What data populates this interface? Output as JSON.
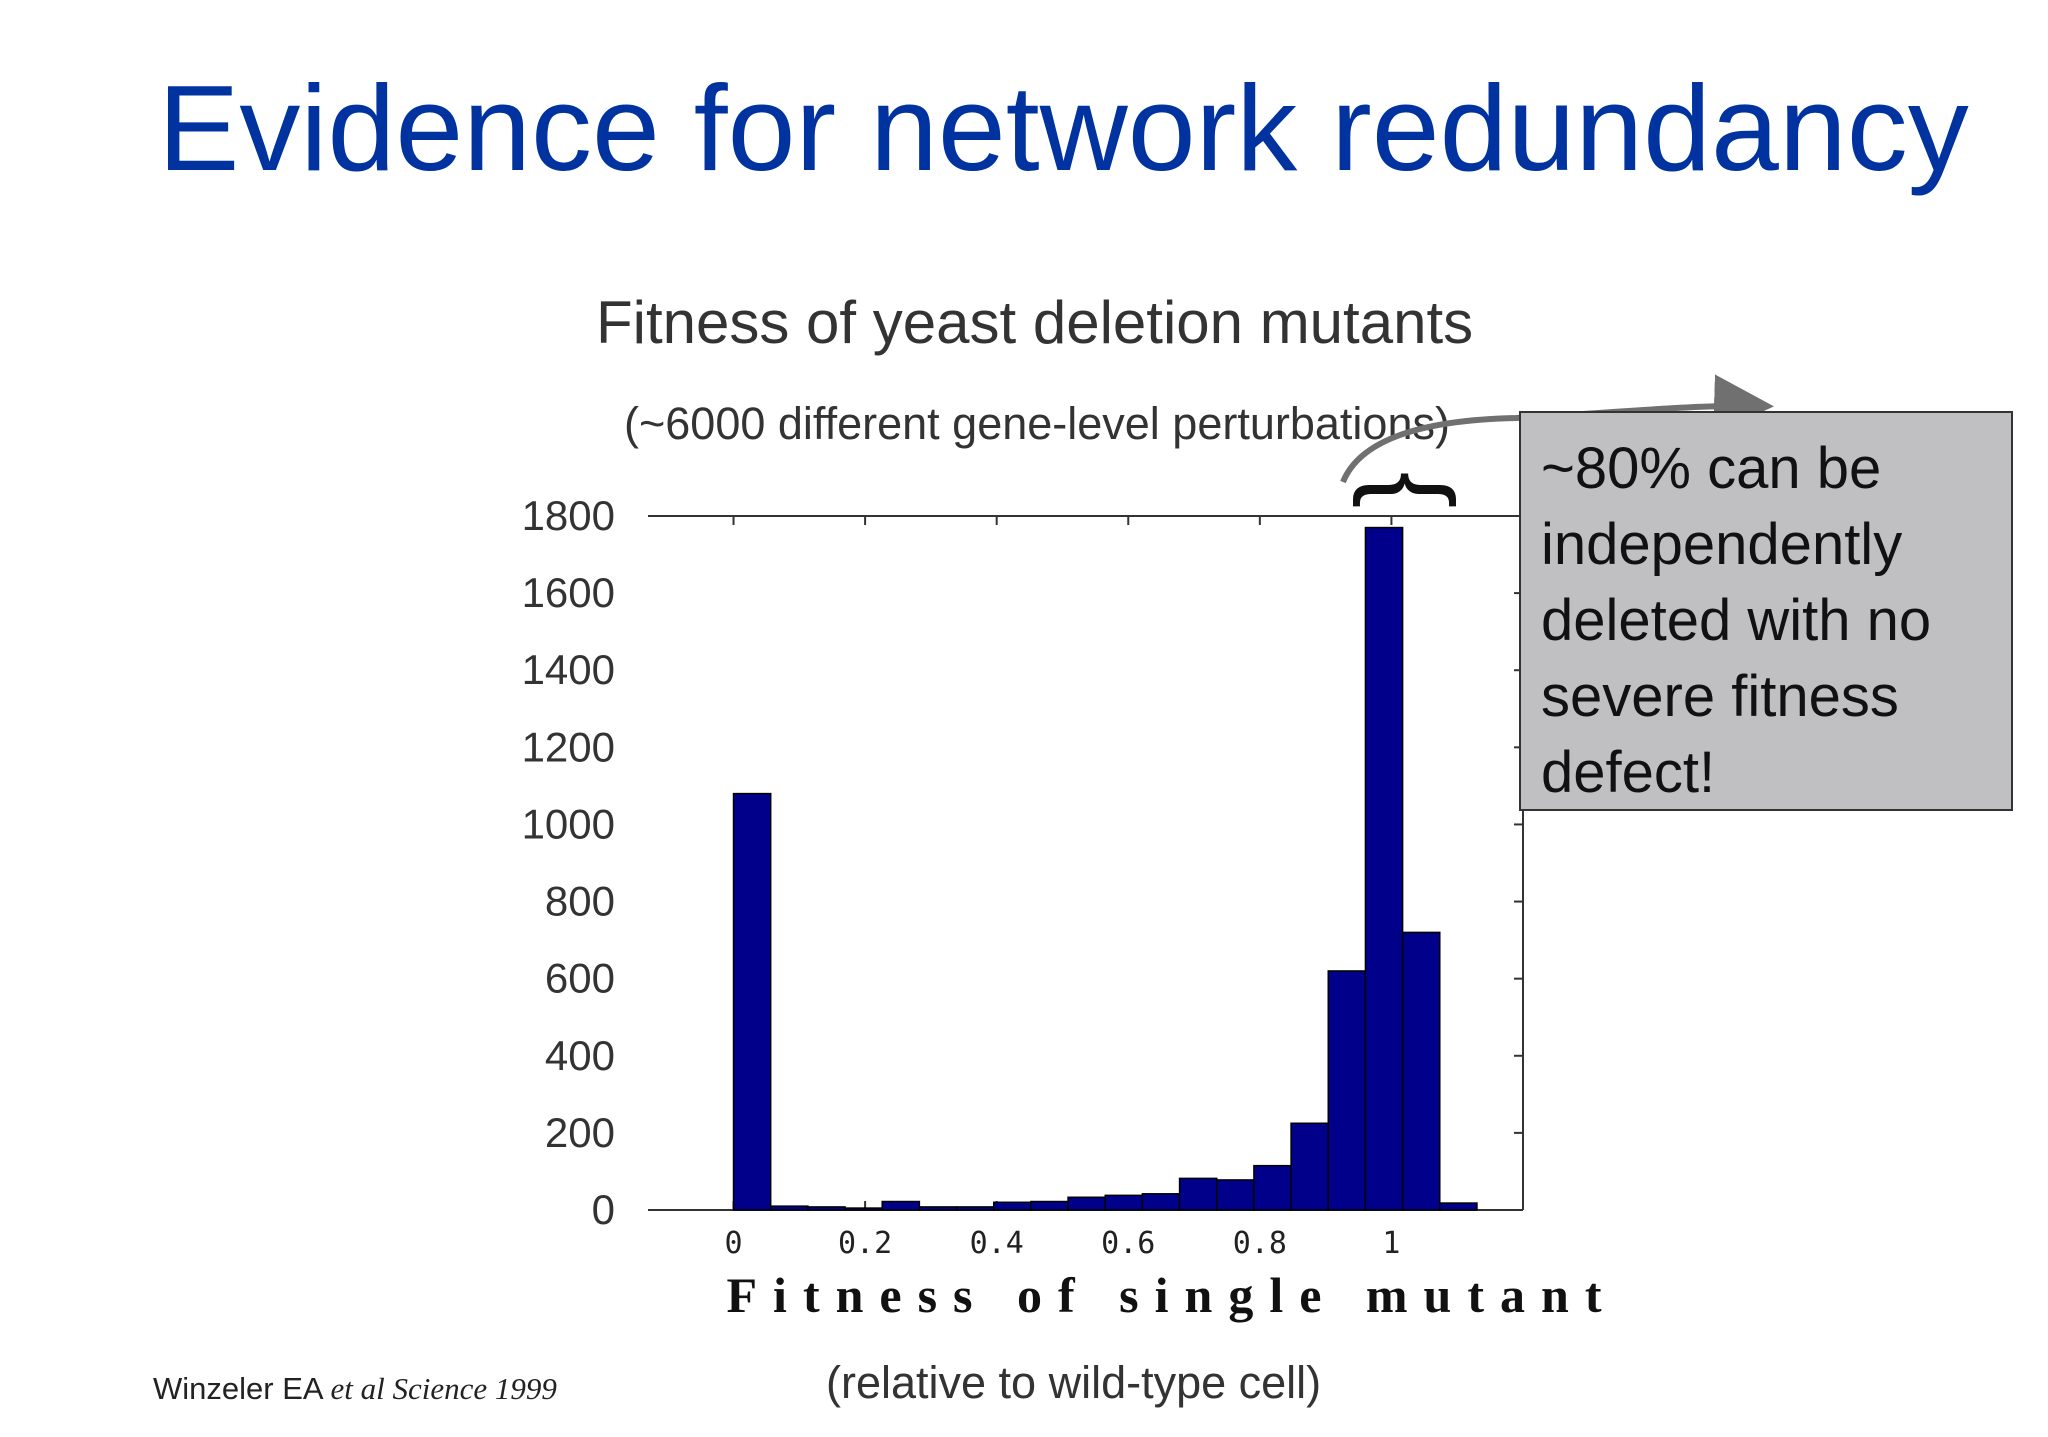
{
  "slide": {
    "title": "Evidence for network redundancy",
    "citation_author": "Winzeler EA",
    "citation_rest": "et al Science 1999"
  },
  "callout": {
    "text": "~80% can be independently deleted with no severe fitness defect!",
    "background": "#c0bfc1"
  },
  "colors": {
    "title": "#0033a0",
    "bar_fill": "#00008b",
    "bar_stroke": "#000000",
    "arrow": "#707070"
  },
  "chart_data": {
    "type": "bar",
    "title": "Fitness of yeast deletion mutants",
    "subtitle": "(~6000 different gene-level perturbations)",
    "xlabel": "Fitness of single mutant",
    "xlabel_sub": "(relative to wild-type cell)",
    "bin_width": 0.0565,
    "x_start": 0.0,
    "values": [
      1080,
      10,
      8,
      5,
      22,
      8,
      8,
      20,
      22,
      33,
      38,
      42,
      82,
      78,
      115,
      225,
      620,
      1770,
      720,
      18
    ],
    "xlim": [
      -0.13,
      1.2
    ],
    "ylim": [
      0,
      1800
    ],
    "x_ticks": [
      0,
      0.2,
      0.4,
      0.6,
      0.8,
      1
    ],
    "x_tick_labels": [
      "0",
      "0.2",
      "0.4",
      "0.6",
      "0.8",
      "1"
    ],
    "y_ticks": [
      0,
      200,
      400,
      600,
      800,
      1000,
      1200,
      1400,
      1600,
      1800
    ],
    "y_tick_labels": [
      "0",
      "200",
      "400",
      "600",
      "800",
      "1000",
      "1200",
      "1400",
      "1600",
      "1800"
    ],
    "bracket_symbol": "{",
    "grid": false,
    "legend": "none"
  }
}
